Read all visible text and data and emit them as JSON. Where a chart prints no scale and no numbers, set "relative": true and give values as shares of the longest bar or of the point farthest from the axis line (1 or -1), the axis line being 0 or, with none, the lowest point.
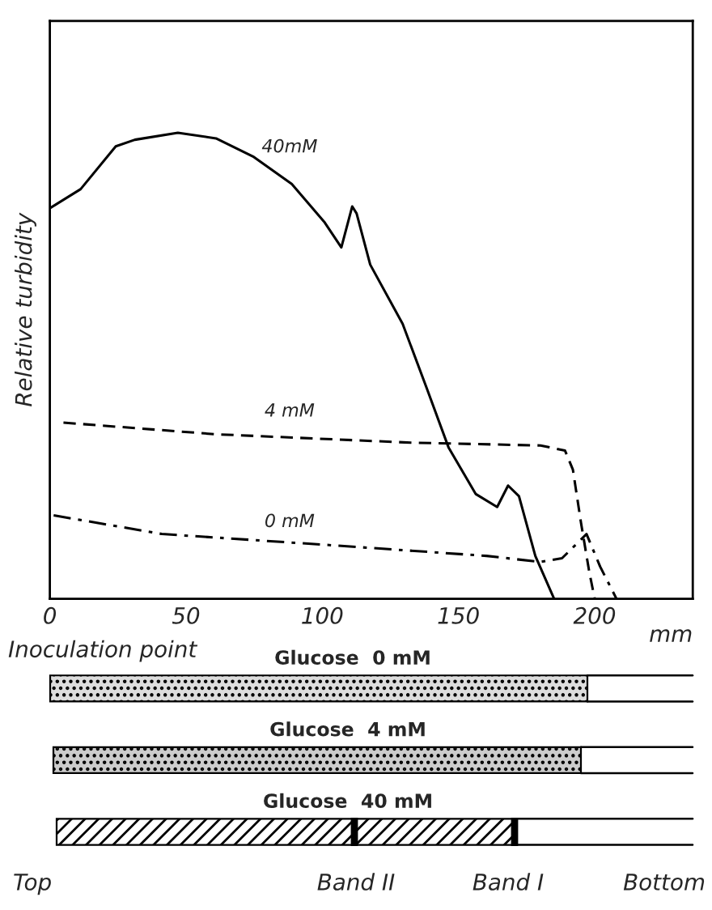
{
  "chart_data": {
    "type": "line",
    "relative": true,
    "ylabel": "Relative turbidity",
    "xlabel": "mm",
    "xlim": [
      0,
      236
    ],
    "xticks": [
      0,
      50,
      100,
      150,
      200
    ],
    "grid": false,
    "legend": false,
    "marker": "none",
    "series": [
      {
        "name": "40mM",
        "color": "#000000",
        "line_style": "solid",
        "x": [
          0,
          11.3,
          24.2,
          31.2,
          47,
          61,
          74.9,
          88.8,
          100.7,
          107,
          111,
          112.6,
          117.6,
          129.5,
          138.4,
          146.4,
          156.3,
          164.2,
          168.2,
          172.2,
          178.2,
          185.1
        ],
        "values": [
          0.838,
          0.879,
          0.971,
          0.985,
          1.0,
          0.988,
          0.948,
          0.89,
          0.809,
          0.754,
          0.842,
          0.827,
          0.717,
          0.59,
          0.451,
          0.324,
          0.225,
          0.197,
          0.243,
          0.22,
          0.092,
          0
        ]
      },
      {
        "name": "4 mM",
        "color": "#000000",
        "line_style": "dashed",
        "x": [
          5,
          61,
          132.5,
          180.1,
          189.1,
          192,
          195,
          198,
          200
        ],
        "values": [
          0.378,
          0.353,
          0.335,
          0.329,
          0.318,
          0.277,
          0.162,
          0.058,
          0
        ]
      },
      {
        "name": "0 mM",
        "color": "#000000",
        "line_style": "dashdot",
        "x": [
          1.4,
          41.1,
          100.7,
          160.3,
          180.1,
          188,
          197,
          202,
          208
        ],
        "values": [
          0.179,
          0.139,
          0.116,
          0.092,
          0.079,
          0.087,
          0.139,
          0.069,
          0
        ]
      }
    ],
    "annotations": [
      "Inoculation point",
      "Glucose  0 mM",
      "Glucose  4 mM",
      "Glucose  40 mM",
      "Top",
      "Band II",
      "Band I",
      "Bottom"
    ]
  }
}
